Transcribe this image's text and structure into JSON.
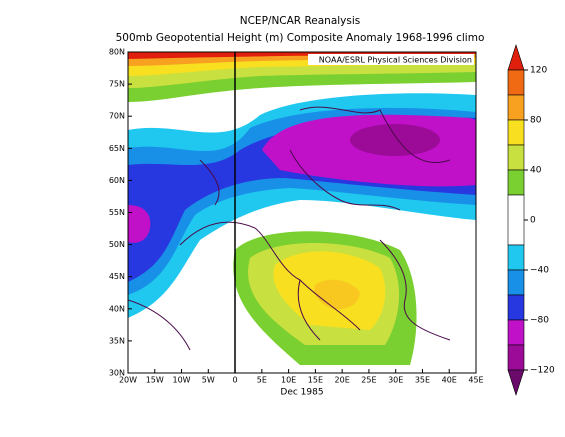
{
  "header": {
    "title": "NCEP/NCAR Reanalysis",
    "subtitle": "500mb Geopotential Height (m) Composite Anomaly 1968-1996 climo",
    "credit": "NOAA/ESRL Physical Sciences Division"
  },
  "map": {
    "lon_ticks": [
      "20W",
      "15W",
      "10W",
      "5W",
      "0",
      "5E",
      "10E",
      "15E",
      "20E",
      "25E",
      "30E",
      "35E",
      "40E",
      "45E"
    ],
    "lat_ticks": [
      "80N",
      "75N",
      "70N",
      "65N",
      "60N",
      "55N",
      "50N",
      "45N",
      "40N",
      "35N",
      "30N"
    ],
    "date": "Dec 1985"
  },
  "colorbar": {
    "labels": [
      "120",
      "80",
      "40",
      "0",
      "−40",
      "−80",
      "−120"
    ]
  }
}
